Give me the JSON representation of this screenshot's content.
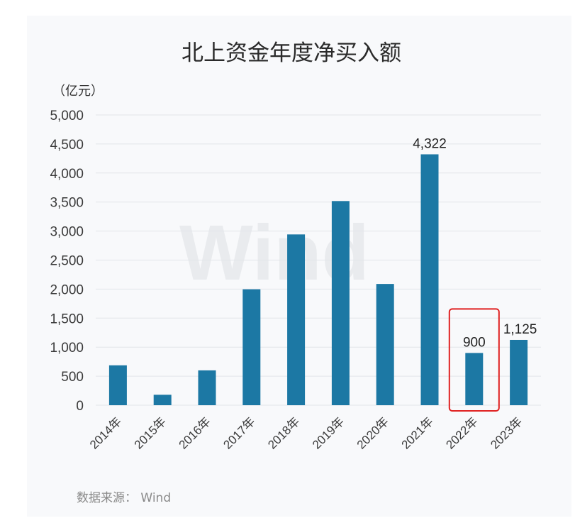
{
  "chart_data": {
    "type": "bar",
    "title": "北上资金年度净买入额",
    "unit_label": "（亿元）",
    "categories": [
      "2014年",
      "2015年",
      "2016年",
      "2017年",
      "2018年",
      "2019年",
      "2020年",
      "2021年",
      "2022年",
      "2023年"
    ],
    "values": [
      687,
      180,
      600,
      1997,
      2942,
      3517,
      2089,
      4322,
      900,
      1125
    ],
    "data_labels": [
      "",
      "",
      "",
      "",
      "",
      "",
      "",
      "4,322",
      "900",
      "1,125"
    ],
    "highlighted_category": "2022年",
    "ylim": [
      0,
      5000
    ],
    "yticks": [
      "0",
      "500",
      "1,000",
      "1,500",
      "2,000",
      "2,500",
      "3,000",
      "3,500",
      "4,000",
      "4,500",
      "5,000"
    ],
    "xlabel": "",
    "ylabel": "",
    "grid": true,
    "legend": "none",
    "source": "数据来源：  Wind",
    "watermark": "Wind"
  },
  "colors": {
    "bar": "#1c78a4",
    "highlight_box": "#e02020",
    "grid": "#e2e5ea",
    "background": "#f8f9fb"
  }
}
